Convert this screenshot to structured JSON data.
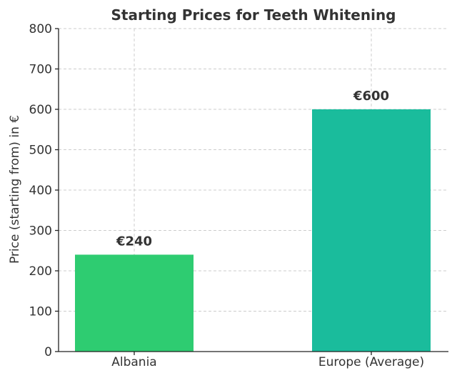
{
  "chart_data": {
    "type": "bar",
    "title": "Starting Prices for Teeth Whitening",
    "xlabel": "",
    "ylabel": "Price (starting from) in €",
    "categories": [
      "Albania",
      "Europe (Average)"
    ],
    "values": [
      240,
      600
    ],
    "data_labels": [
      "€240",
      "€600"
    ],
    "colors": [
      "#2ecc71",
      "#1abc9c"
    ],
    "ylim": [
      0,
      800
    ],
    "yticks": [
      0,
      100,
      200,
      300,
      400,
      500,
      600,
      700,
      800
    ],
    "grid": true,
    "legend": "none"
  }
}
